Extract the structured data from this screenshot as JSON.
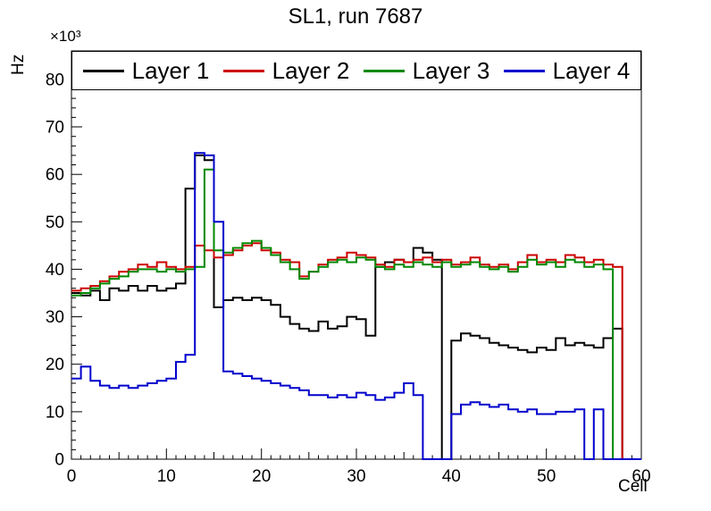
{
  "chart_data": {
    "type": "step-histogram",
    "title": "SL1, run 7687",
    "xlabel": "Cell",
    "ylabel": "Hz",
    "y_exponent": "×10³",
    "xlim": [
      0,
      60
    ],
    "ylim": [
      0,
      86
    ],
    "xticks": [
      0,
      10,
      20,
      30,
      40,
      50,
      60
    ],
    "yticks": [
      0,
      10,
      20,
      30,
      40,
      50,
      60,
      70,
      80
    ],
    "bin_width": 1,
    "values_unit": "×10³ Hz",
    "grid": false,
    "legend_position": "top",
    "series": [
      {
        "name": "Layer 1",
        "color": "#000000",
        "values": [
          35,
          34.5,
          35.5,
          33.5,
          36,
          35.5,
          36.5,
          35.5,
          36.5,
          35.5,
          36,
          37,
          57,
          64,
          63,
          32,
          33.5,
          34,
          33.5,
          34,
          33.5,
          32.5,
          30,
          28.5,
          27.5,
          27,
          29,
          27.5,
          28,
          30,
          29.5,
          26,
          40.5,
          41.5,
          42,
          41.5,
          44.5,
          43.5,
          42,
          0,
          25,
          26.5,
          26,
          25.5,
          24.5,
          24,
          23.5,
          23,
          22.5,
          23.5,
          23,
          25.5,
          24,
          24.5,
          24,
          23.5,
          25.5,
          27.5,
          0,
          0
        ]
      },
      {
        "name": "Layer 2",
        "color": "#cc0000",
        "values": [
          35.5,
          36,
          36.5,
          37.5,
          38.5,
          39.5,
          40,
          41,
          40.5,
          41.5,
          40.5,
          40,
          40.5,
          45,
          44,
          42.5,
          43,
          44,
          45,
          45.5,
          44,
          43.5,
          42,
          41.5,
          38.5,
          39.5,
          41,
          42,
          42.5,
          43.5,
          43,
          42.5,
          41,
          40.5,
          42,
          41.5,
          42,
          42.5,
          41.5,
          42,
          41,
          41.5,
          42.5,
          41,
          40.5,
          41,
          40,
          41.5,
          43,
          41.5,
          42,
          41.5,
          43,
          42.5,
          41.5,
          42,
          41,
          40.5,
          0,
          0
        ]
      },
      {
        "name": "Layer 3",
        "color": "#008800",
        "values": [
          34.5,
          35,
          36,
          37,
          38,
          38.5,
          39.5,
          40,
          40,
          39.5,
          40,
          39.5,
          40,
          40.5,
          61,
          44,
          43.5,
          44.5,
          45.5,
          46,
          44.5,
          43,
          41.5,
          40,
          38,
          39.5,
          40.5,
          41.5,
          42,
          41.5,
          42.5,
          42,
          40.5,
          40,
          41,
          40.5,
          41.5,
          41,
          40.5,
          41.5,
          40.5,
          41,
          41.5,
          40.5,
          40,
          40.5,
          39.5,
          40.5,
          42,
          41,
          41.5,
          40.5,
          42,
          41.5,
          40.5,
          41,
          40,
          0,
          0,
          0
        ]
      },
      {
        "name": "Layer 4",
        "color": "#0000cc",
        "values": [
          17,
          19.5,
          16.5,
          15.5,
          15,
          15.5,
          15,
          15.5,
          16,
          16.5,
          17,
          20.5,
          22,
          64.5,
          64,
          50,
          18.5,
          18,
          17.5,
          17,
          16.5,
          16,
          15.5,
          15,
          14.5,
          13.5,
          13.5,
          13,
          13.5,
          13,
          14,
          13.5,
          12.5,
          13,
          14,
          16,
          13.5,
          0,
          0,
          0,
          9.5,
          11.5,
          12,
          11.5,
          11,
          11.5,
          10.5,
          10,
          10.5,
          9.5,
          9.5,
          10,
          10,
          10.5,
          0,
          10.5,
          0,
          0,
          0,
          0
        ]
      }
    ]
  }
}
